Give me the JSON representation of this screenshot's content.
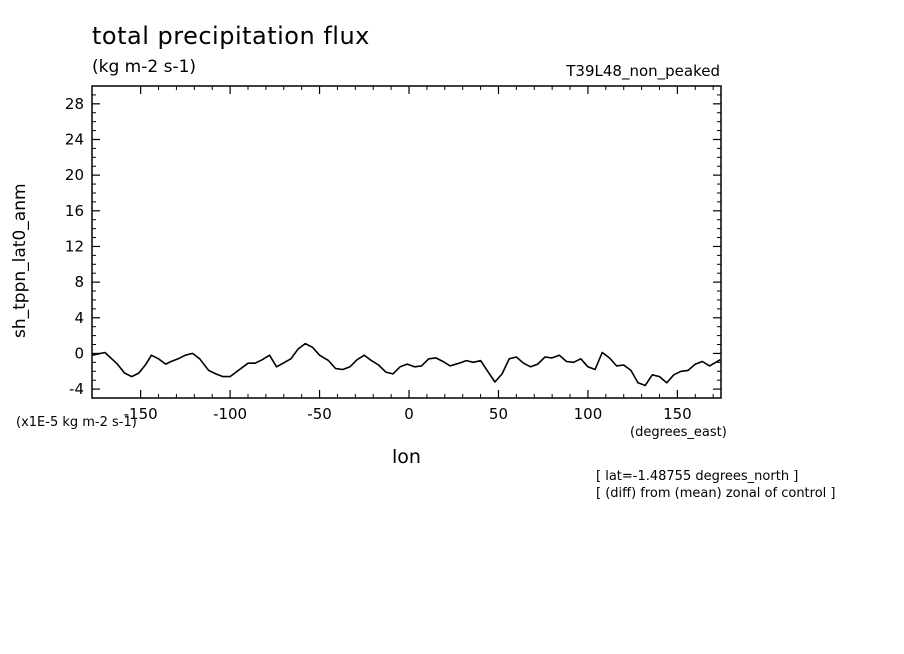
{
  "chart_data": {
    "type": "line",
    "title": "total precipitation flux",
    "units": "(kg m-2 s-1)",
    "run_label": "T39L48_non_peaked",
    "ylabel": "sh_tppn_lat0_anm",
    "xlabel": "lon",
    "x_units": "(degrees_east)",
    "y_scale_note": "(x1E-5 kg m-2 s-1)",
    "annotations": [
      "[ lat=-1.48755 degrees_north ]",
      "[ (diff) from (mean) zonal of control ]"
    ],
    "xlim": [
      -177.1875,
      174.375
    ],
    "ylim": [
      -5,
      30
    ],
    "x_ticks": [
      -150,
      -100,
      -50,
      0,
      50,
      100,
      150
    ],
    "x_tick_labels": [
      "-150",
      "-100",
      "-50",
      "0",
      "50",
      "100",
      "150"
    ],
    "y_ticks": [
      -4,
      0,
      4,
      8,
      12,
      16,
      20,
      24,
      28
    ],
    "y_tick_labels": [
      "-4",
      "0",
      "4",
      "8",
      "12",
      "16",
      "20",
      "24",
      "28"
    ],
    "x": [
      -177,
      -170,
      -163,
      -159,
      -155,
      -151,
      -147,
      -144,
      -140,
      -136,
      -133,
      -129,
      -125,
      -121,
      -117,
      -112,
      -108,
      -104,
      -100,
      -90,
      -86,
      -82,
      -78,
      -74,
      -66,
      -62,
      -58,
      -54,
      -50,
      -45,
      -41,
      -37,
      -33,
      -29,
      -25,
      -21,
      -17,
      -13,
      -9,
      -5,
      -1,
      3,
      7,
      11,
      15,
      19,
      23,
      28,
      32,
      36,
      40,
      44,
      48,
      52,
      56,
      60,
      64,
      68,
      72,
      76,
      80,
      84,
      88,
      92,
      96,
      100,
      104,
      108,
      112,
      116,
      120,
      124,
      128,
      132,
      136,
      140,
      144,
      148,
      152,
      156,
      160,
      164,
      168,
      174
    ],
    "values": [
      -0.2,
      0.1,
      -1.2,
      -2.2,
      -2.6,
      -2.2,
      -1.2,
      -0.2,
      -0.6,
      -1.2,
      -0.9,
      -0.6,
      -0.2,
      0.0,
      -0.6,
      -1.9,
      -2.3,
      -2.6,
      -2.6,
      -1.1,
      -1.1,
      -0.7,
      -0.2,
      -1.5,
      -0.6,
      0.5,
      1.1,
      0.7,
      -0.2,
      -0.8,
      -1.7,
      -1.8,
      -1.5,
      -0.7,
      -0.2,
      -0.8,
      -1.3,
      -2.1,
      -2.3,
      -1.5,
      -1.2,
      -1.5,
      -1.4,
      -0.6,
      -0.5,
      -0.9,
      -1.4,
      -1.1,
      -0.8,
      -1.0,
      -0.8,
      -2.0,
      -3.2,
      -2.3,
      -0.6,
      -0.4,
      -1.1,
      -1.5,
      -1.2,
      -0.4,
      -0.5,
      -0.2,
      -0.9,
      -1.0,
      -0.6,
      -1.5,
      -1.8,
      0.1,
      -0.5,
      -1.4,
      -1.3,
      -1.9,
      -3.3,
      -3.6,
      -2.4,
      -2.6,
      -3.3,
      -2.4,
      -2.0,
      -1.9,
      -1.2,
      -0.9,
      -1.4,
      -0.7
    ]
  }
}
